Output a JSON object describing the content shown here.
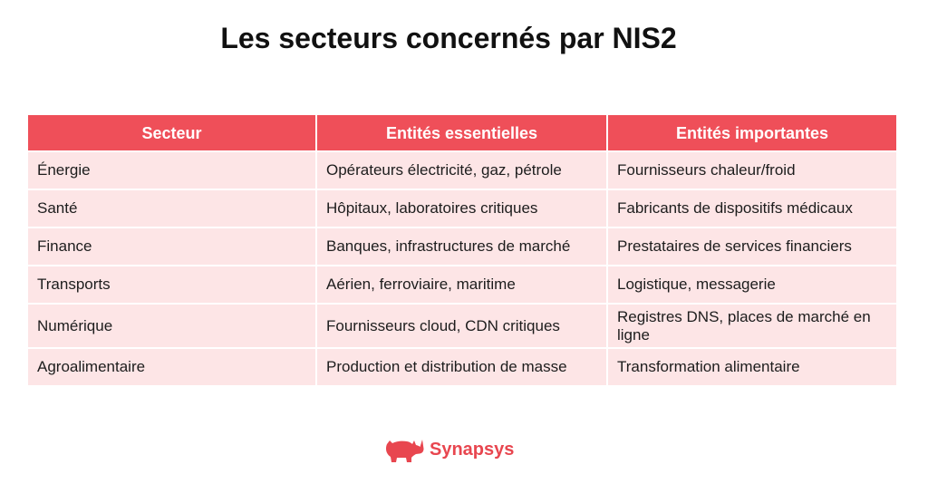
{
  "title": "Les secteurs concernés par NIS2",
  "colors": {
    "header_bg": "#ef4f59",
    "row_bg": "#fde5e6",
    "text": "#1d1d1d",
    "brand": "#e8464f"
  },
  "table": {
    "headers": [
      "Secteur",
      "Entités essentielles",
      "Entités importantes"
    ],
    "rows": [
      [
        "Énergie",
        "Opérateurs électricité, gaz, pétrole",
        "Fournisseurs chaleur/froid"
      ],
      [
        "Santé",
        "Hôpitaux, laboratoires critiques",
        "Fabricants de dispositifs médicaux"
      ],
      [
        "Finance",
        "Banques, infrastructures de marché",
        "Prestataires de services financiers"
      ],
      [
        "Transports",
        "Aérien, ferroviaire, maritime",
        "Logistique, messagerie"
      ],
      [
        "Numérique",
        "Fournisseurs cloud, CDN critiques",
        "Registres DNS, places de marché en ligne"
      ],
      [
        "Agroalimentaire",
        "Production et distribution de masse",
        "Transformation alimentaire"
      ]
    ]
  },
  "logo": {
    "icon": "rhino-icon",
    "text": "Synapsys"
  }
}
